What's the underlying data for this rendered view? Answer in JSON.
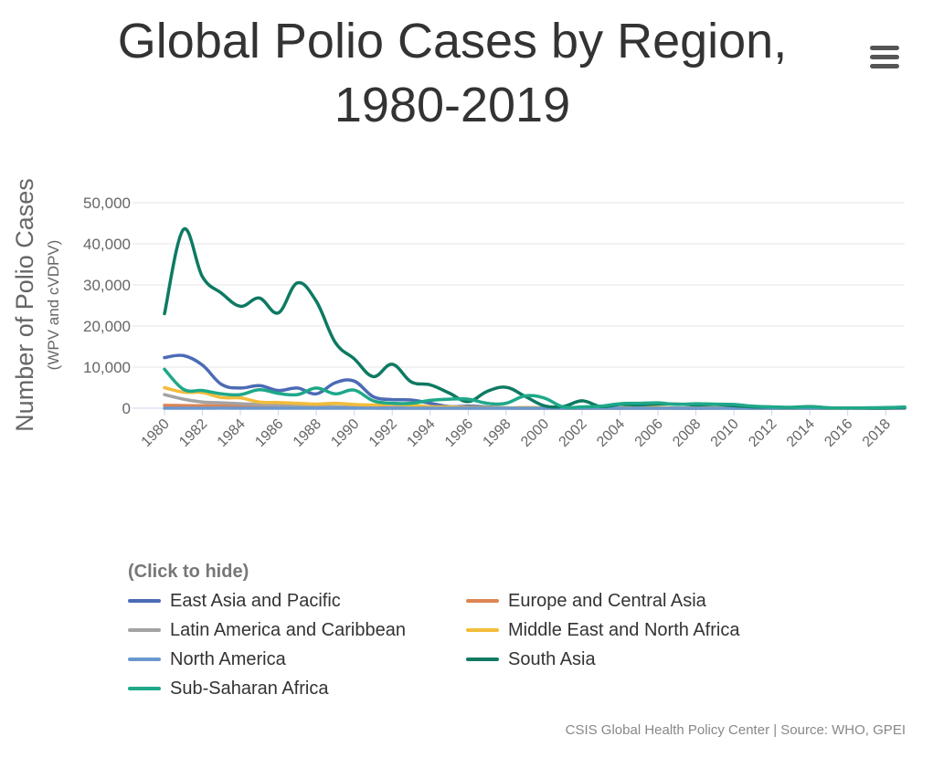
{
  "title_line1": "Global Polio Cases by Region,",
  "title_line2": "1980-2019",
  "legend_hint": "(Click to hide)",
  "credits": "CSIS Global Health Policy Center | Source: WHO, GPEI",
  "chart_data": {
    "type": "line",
    "ylabel": "Number of Polio Cases",
    "ylabel_sub": "(WPV and cVDPV)",
    "ylim": [
      0,
      50000
    ],
    "y_ticks": [
      "0",
      "10,000",
      "20,000",
      "30,000",
      "40,000",
      "50,000"
    ],
    "y_tick_values": [
      0,
      10000,
      20000,
      30000,
      40000,
      50000
    ],
    "x_ticks": [
      "1980",
      "1982",
      "1984",
      "1986",
      "1988",
      "1990",
      "1992",
      "1994",
      "1996",
      "1998",
      "2000",
      "2002",
      "2004",
      "2006",
      "2008",
      "2010",
      "2012",
      "2014",
      "2016",
      "2018"
    ],
    "grid": true,
    "legend_placement": "bottom",
    "x": [
      1980,
      1981,
      1982,
      1983,
      1984,
      1985,
      1986,
      1987,
      1988,
      1989,
      1990,
      1991,
      1992,
      1993,
      1994,
      1995,
      1996,
      1997,
      1998,
      1999,
      2000,
      2001,
      2002,
      2003,
      2004,
      2005,
      2006,
      2007,
      2008,
      2009,
      2010,
      2011,
      2012,
      2013,
      2014,
      2015,
      2016,
      2017,
      2018,
      2019
    ],
    "series": [
      {
        "name": "East Asia and Pacific",
        "color": "#4c6bb5",
        "values": [
          12300,
          12800,
          10500,
          5800,
          4900,
          5500,
          4300,
          4900,
          3500,
          6200,
          6600,
          2800,
          2100,
          2000,
          1200,
          400,
          500,
          300,
          100,
          50,
          100,
          10,
          0,
          0,
          0,
          200,
          100,
          0,
          0,
          100,
          0,
          0,
          0,
          0,
          0,
          0,
          0,
          0,
          0,
          0
        ]
      },
      {
        "name": "Europe and Central Asia",
        "color": "#dd8452",
        "values": [
          700,
          650,
          600,
          550,
          500,
          450,
          400,
          350,
          300,
          250,
          200,
          200,
          150,
          150,
          150,
          100,
          80,
          50,
          50,
          20,
          10,
          5,
          0,
          0,
          0,
          0,
          0,
          0,
          0,
          0,
          460,
          0,
          0,
          0,
          0,
          0,
          0,
          0,
          0,
          0
        ]
      },
      {
        "name": "Latin America and Caribbean",
        "color": "#a3a3a3",
        "values": [
          3300,
          2200,
          1500,
          1300,
          1100,
          900,
          800,
          700,
          500,
          350,
          300,
          50,
          0,
          0,
          0,
          0,
          0,
          0,
          0,
          0,
          10,
          5,
          0,
          0,
          0,
          0,
          0,
          0,
          0,
          0,
          0,
          0,
          0,
          0,
          0,
          0,
          0,
          0,
          0,
          0
        ]
      },
      {
        "name": "Middle East and North Africa",
        "color": "#f2bc3b",
        "values": [
          5000,
          3900,
          3800,
          2600,
          2500,
          1500,
          1400,
          1200,
          1000,
          1200,
          900,
          800,
          1000,
          700,
          400,
          300,
          200,
          150,
          100,
          150,
          100,
          50,
          50,
          10,
          20,
          700,
          200,
          50,
          100,
          100,
          50,
          50,
          80,
          20,
          40,
          10,
          10,
          60,
          0,
          0
        ]
      },
      {
        "name": "North America",
        "color": "#6b97cf",
        "values": [
          10,
          5,
          8,
          12,
          5,
          5,
          5,
          5,
          5,
          5,
          5,
          0,
          0,
          0,
          0,
          0,
          0,
          0,
          0,
          0,
          0,
          0,
          0,
          0,
          0,
          0,
          0,
          0,
          0,
          0,
          0,
          0,
          0,
          0,
          0,
          0,
          0,
          0,
          0,
          0
        ]
      },
      {
        "name": "South Asia",
        "color": "#0d7a62",
        "values": [
          23000,
          43500,
          32000,
          28000,
          24800,
          26800,
          23200,
          30500,
          26000,
          16000,
          12000,
          7700,
          10700,
          6400,
          5700,
          3700,
          1600,
          4100,
          5100,
          2900,
          600,
          400,
          1800,
          400,
          900,
          800,
          1000,
          1000,
          800,
          900,
          600,
          300,
          300,
          200,
          400,
          100,
          50,
          40,
          60,
          200
        ]
      },
      {
        "name": "Sub-Saharan Africa",
        "color": "#1ea889",
        "values": [
          9500,
          4600,
          4300,
          3500,
          3300,
          4500,
          3600,
          3300,
          4900,
          3500,
          4400,
          1800,
          1200,
          1200,
          1900,
          2200,
          2200,
          1200,
          1200,
          3000,
          2500,
          300,
          300,
          500,
          1100,
          1200,
          1300,
          900,
          1100,
          1000,
          900,
          500,
          300,
          200,
          300,
          100,
          50,
          100,
          150,
          300
        ]
      }
    ]
  }
}
